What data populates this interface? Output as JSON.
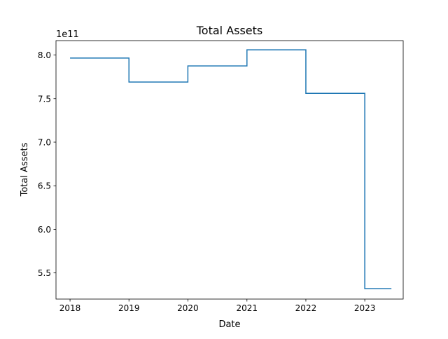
{
  "chart_data": {
    "type": "line",
    "step": "post",
    "title": "Total Assets",
    "xlabel": "Date",
    "ylabel": "Total Assets",
    "y_offset_label": "1e11",
    "x_ticks": [
      "2018",
      "2019",
      "2020",
      "2021",
      "2022",
      "2023"
    ],
    "y_ticks": [
      "5.5",
      "6.0",
      "6.5",
      "7.0",
      "7.5",
      "8.0"
    ],
    "xlim": [
      "2017-10-06",
      "2023-08-27"
    ],
    "ylim": [
      520000000000.0,
      816500000000.0
    ],
    "grid": false,
    "legend": "none",
    "series": [
      {
        "color": "#1f77b4",
        "x": [
          "2018-01-01",
          "2019-01-01",
          "2020-01-01",
          "2021-01-01",
          "2022-01-01",
          "2023-01-01",
          "2023-06-15"
        ],
        "y": [
          796500000000.0,
          769000000000.0,
          787500000000.0,
          806000000000.0,
          756000000000.0,
          532000000000.0,
          532000000000.0
        ]
      }
    ]
  }
}
